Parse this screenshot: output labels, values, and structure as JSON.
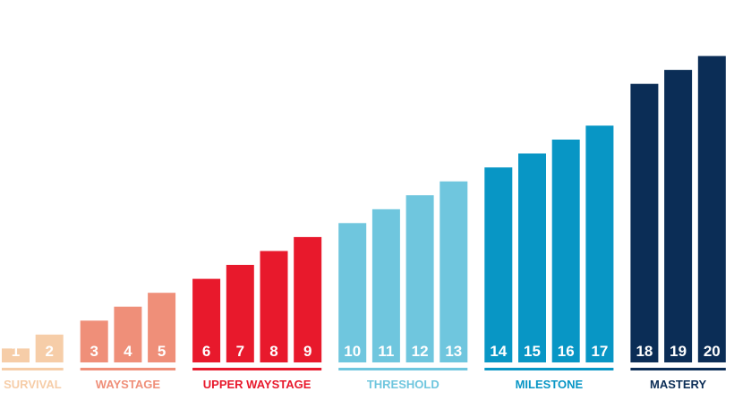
{
  "chart_data": {
    "type": "bar",
    "categories": [
      "1",
      "2",
      "3",
      "4",
      "5",
      "6",
      "7",
      "8",
      "9",
      "10",
      "11",
      "12",
      "13",
      "14",
      "15",
      "16",
      "17",
      "18",
      "19",
      "20"
    ],
    "values": [
      2,
      3,
      4,
      5,
      6,
      7,
      8,
      9,
      10,
      11,
      12,
      13,
      14,
      15,
      16,
      17,
      18,
      21,
      22,
      23
    ],
    "groups": [
      {
        "label": "SURVIVAL",
        "members": [
          "1",
          "2"
        ],
        "color": "#f6cda8"
      },
      {
        "label": "WAYSTAGE",
        "members": [
          "3",
          "4",
          "5"
        ],
        "color": "#ef8f79"
      },
      {
        "label": "UPPER WAYSTAGE",
        "members": [
          "6",
          "7",
          "8",
          "9"
        ],
        "color": "#e8192c"
      },
      {
        "label": "THRESHOLD",
        "members": [
          "10",
          "11",
          "12",
          "13"
        ],
        "color": "#6fc6de"
      },
      {
        "label": "MILESTONE",
        "members": [
          "14",
          "15",
          "16",
          "17"
        ],
        "color": "#0896c5"
      },
      {
        "label": "MASTERY",
        "members": [
          "18",
          "19",
          "20"
        ],
        "color": "#0b2d56"
      }
    ],
    "title": "",
    "xlabel": "",
    "ylabel": "",
    "ylim": [
      0,
      24
    ],
    "grid": false,
    "legend": "none"
  }
}
